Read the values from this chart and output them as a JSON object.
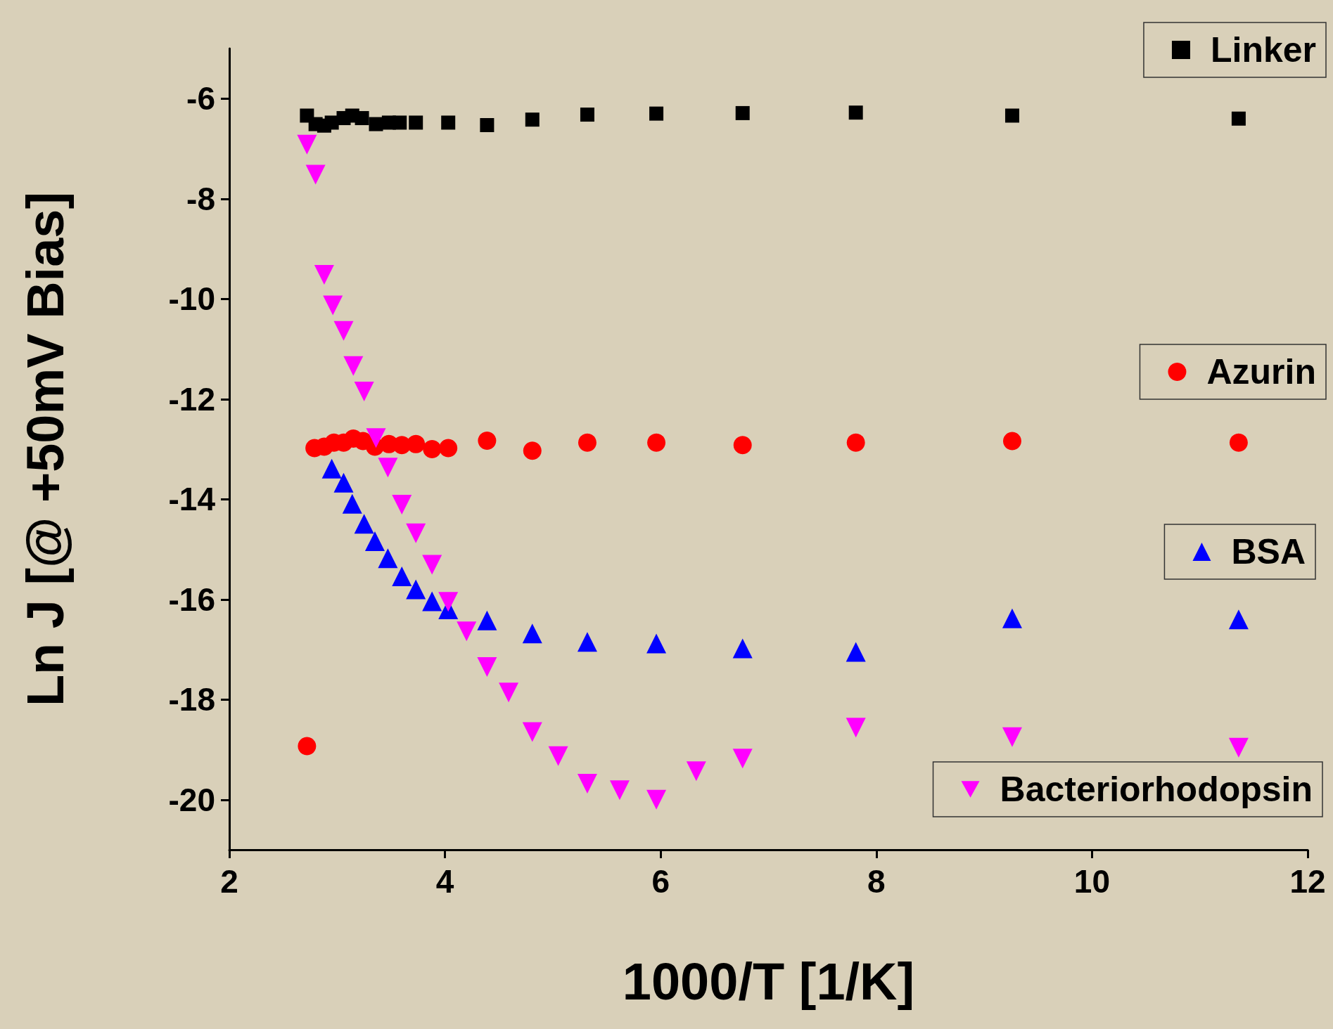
{
  "chart_data": {
    "type": "scatter",
    "xlabel": "1000/T [1/K]",
    "ylabel": "Ln J [@ +50mV Bias]",
    "xlim": [
      2,
      12
    ],
    "xticks": [
      2,
      4,
      6,
      8,
      10,
      12
    ],
    "ylim": [
      -21,
      -5
    ],
    "yticks": [
      -20,
      -18,
      -16,
      -14,
      -12,
      -10,
      -8,
      -6
    ],
    "grid": false,
    "legend": "right",
    "series": [
      {
        "name": "Linker",
        "color": "#000000",
        "marker": "square",
        "x": [
          2.72,
          2.8,
          2.88,
          2.95,
          3.06,
          3.14,
          3.23,
          3.36,
          3.48,
          3.58,
          3.73,
          4.03,
          4.39,
          4.81,
          5.32,
          5.96,
          6.76,
          7.81,
          9.26,
          11.36
        ],
        "values": [
          -6.34,
          -6.51,
          -6.54,
          -6.48,
          -6.39,
          -6.34,
          -6.39,
          -6.51,
          -6.48,
          -6.48,
          -6.48,
          -6.48,
          -6.53,
          -6.42,
          -6.32,
          -6.3,
          -6.29,
          -6.28,
          -6.34,
          -6.4
        ]
      },
      {
        "name": "Azurin",
        "color": "#ff0000",
        "marker": "circle",
        "x": [
          2.72,
          2.79,
          2.88,
          2.97,
          3.06,
          3.15,
          3.24,
          3.35,
          3.48,
          3.6,
          3.73,
          3.88,
          4.03,
          4.39,
          4.81,
          5.32,
          5.96,
          6.76,
          7.81,
          9.26,
          11.36
        ],
        "values": [
          -18.93,
          -12.98,
          -12.95,
          -12.87,
          -12.87,
          -12.79,
          -12.84,
          -12.95,
          -12.9,
          -12.92,
          -12.9,
          -13.0,
          -12.98,
          -12.83,
          -13.03,
          -12.87,
          -12.87,
          -12.92,
          -12.87,
          -12.84,
          -12.87
        ]
      },
      {
        "name": "BSA",
        "color": "#0000ff",
        "marker": "triangle",
        "x": [
          2.95,
          3.06,
          3.14,
          3.25,
          3.35,
          3.47,
          3.6,
          3.73,
          3.88,
          4.03,
          4.39,
          4.81,
          5.32,
          5.96,
          6.76,
          7.81,
          9.26,
          11.36
        ],
        "values": [
          -13.39,
          -13.67,
          -14.09,
          -14.49,
          -14.84,
          -15.18,
          -15.54,
          -15.8,
          -16.04,
          -16.2,
          -16.42,
          -16.68,
          -16.85,
          -16.88,
          -16.98,
          -17.05,
          -16.38,
          -16.4
        ]
      },
      {
        "name": "Bacteriorhodopsin",
        "color": "#ff00ff",
        "marker": "triangle-down",
        "x": [
          2.72,
          2.8,
          2.88,
          2.96,
          3.06,
          3.15,
          3.25,
          3.36,
          3.47,
          3.6,
          3.73,
          3.88,
          4.03,
          4.2,
          4.39,
          4.59,
          4.81,
          5.05,
          5.32,
          5.62,
          5.96,
          6.33,
          6.76,
          7.81,
          9.26,
          11.36
        ],
        "values": [
          -6.92,
          -7.52,
          -9.52,
          -10.13,
          -10.64,
          -11.34,
          -11.85,
          -12.78,
          -13.37,
          -14.11,
          -14.68,
          -15.31,
          -16.05,
          -16.64,
          -17.35,
          -17.86,
          -18.65,
          -19.13,
          -19.68,
          -19.81,
          -20.0,
          -19.43,
          -19.18,
          -18.56,
          -18.75,
          -18.96
        ]
      }
    ]
  }
}
